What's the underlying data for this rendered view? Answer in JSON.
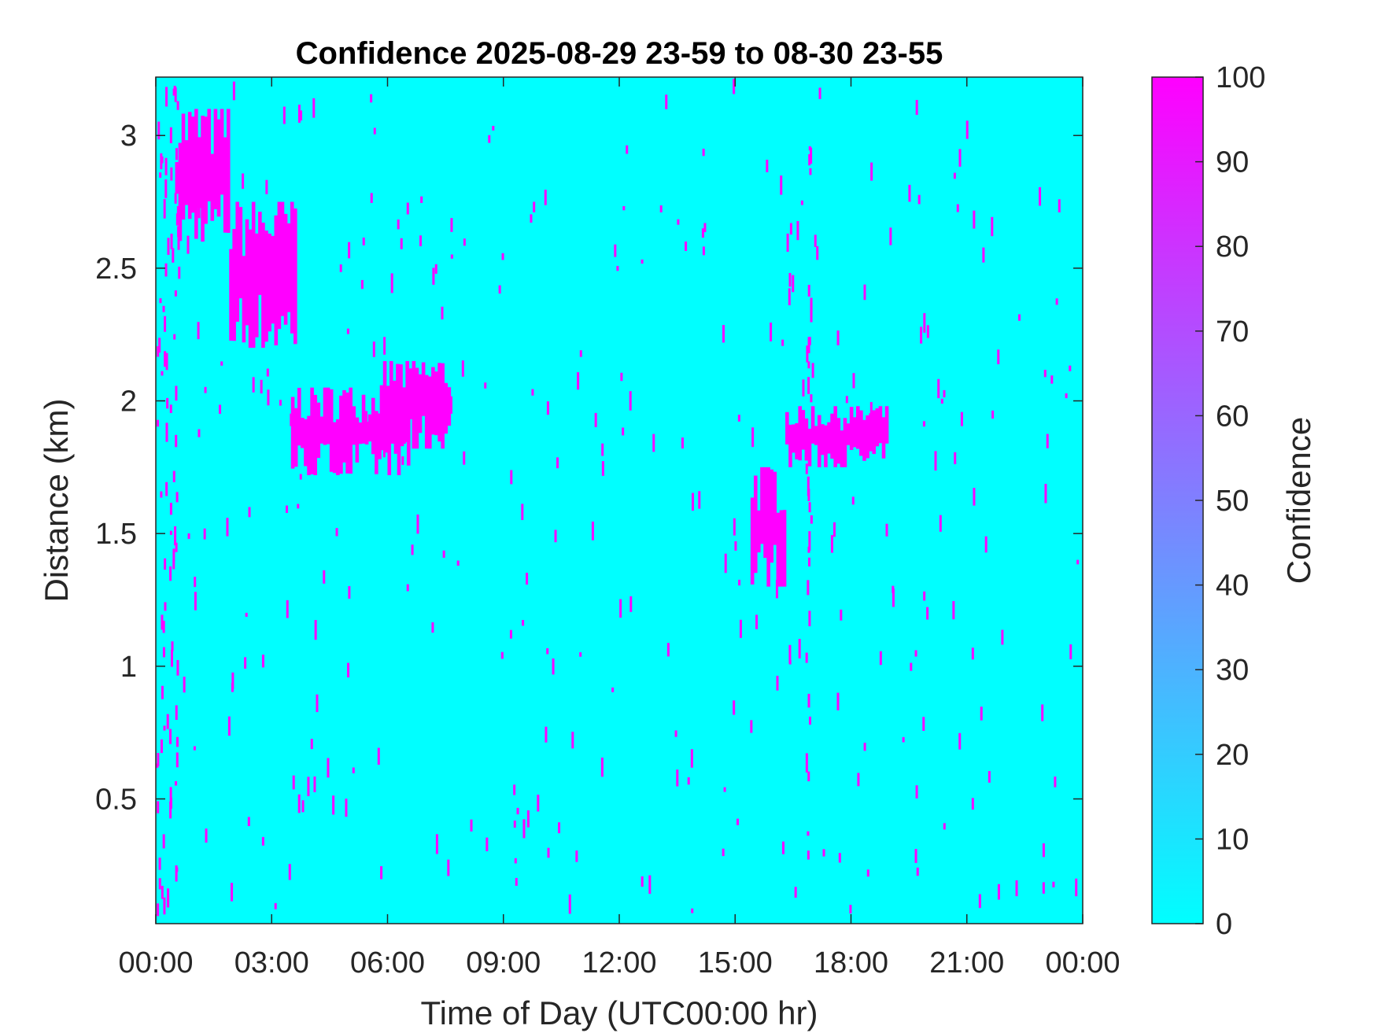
{
  "chart_data": {
    "type": "heatmap",
    "title": "Confidence 2025-08-29 23-59 to 08-30 23-55",
    "xlabel": "Time of Day (UTC00:00 hr)",
    "ylabel": "Distance (km)",
    "xlim_hours": [
      0,
      24
    ],
    "ylim_km": [
      0.03,
      3.22
    ],
    "x_tick_values": [
      0,
      3,
      6,
      9,
      12,
      15,
      18,
      21,
      24
    ],
    "x_tick_labels": [
      "00:00",
      "03:00",
      "06:00",
      "09:00",
      "12:00",
      "15:00",
      "18:00",
      "21:00",
      "00:00"
    ],
    "y_tick_values": [
      0.5,
      1,
      1.5,
      2,
      2.5,
      3
    ],
    "y_tick_labels": [
      "0.5",
      "1",
      "1.5",
      "2",
      "2.5",
      "3"
    ],
    "grid": false,
    "colorbar": {
      "label": "Confidence",
      "range": [
        0,
        100
      ],
      "tick_values": [
        0,
        10,
        20,
        30,
        40,
        50,
        60,
        70,
        80,
        90,
        100
      ],
      "tick_labels": [
        "0",
        "10",
        "20",
        "30",
        "40",
        "50",
        "60",
        "70",
        "80",
        "90",
        "100"
      ],
      "color_low": "#00ffff",
      "color_high": "#ff00ff",
      "placement": "right"
    },
    "background_confidence": 0,
    "high_confidence_regions": [
      {
        "t_start": 0.5,
        "t_end": 1.9,
        "d_min": 2.6,
        "d_max": 3.1,
        "confidence": 100
      },
      {
        "t_start": 1.9,
        "t_end": 3.6,
        "d_min": 2.2,
        "d_max": 2.75,
        "confidence": 100
      },
      {
        "t_start": 3.5,
        "t_end": 6.5,
        "d_min": 1.72,
        "d_max": 2.05,
        "confidence": 100
      },
      {
        "t_start": 5.8,
        "t_end": 7.6,
        "d_min": 1.82,
        "d_max": 2.15,
        "confidence": 100
      },
      {
        "t_start": 15.4,
        "t_end": 16.3,
        "d_min": 1.3,
        "d_max": 1.75,
        "confidence": 100
      },
      {
        "t_start": 16.3,
        "t_end": 18.9,
        "d_min": 1.75,
        "d_max": 1.98,
        "confidence": 100
      }
    ],
    "colors": {
      "low": "#00ffff",
      "high": "#ff00ff",
      "axes": "#262626"
    }
  }
}
